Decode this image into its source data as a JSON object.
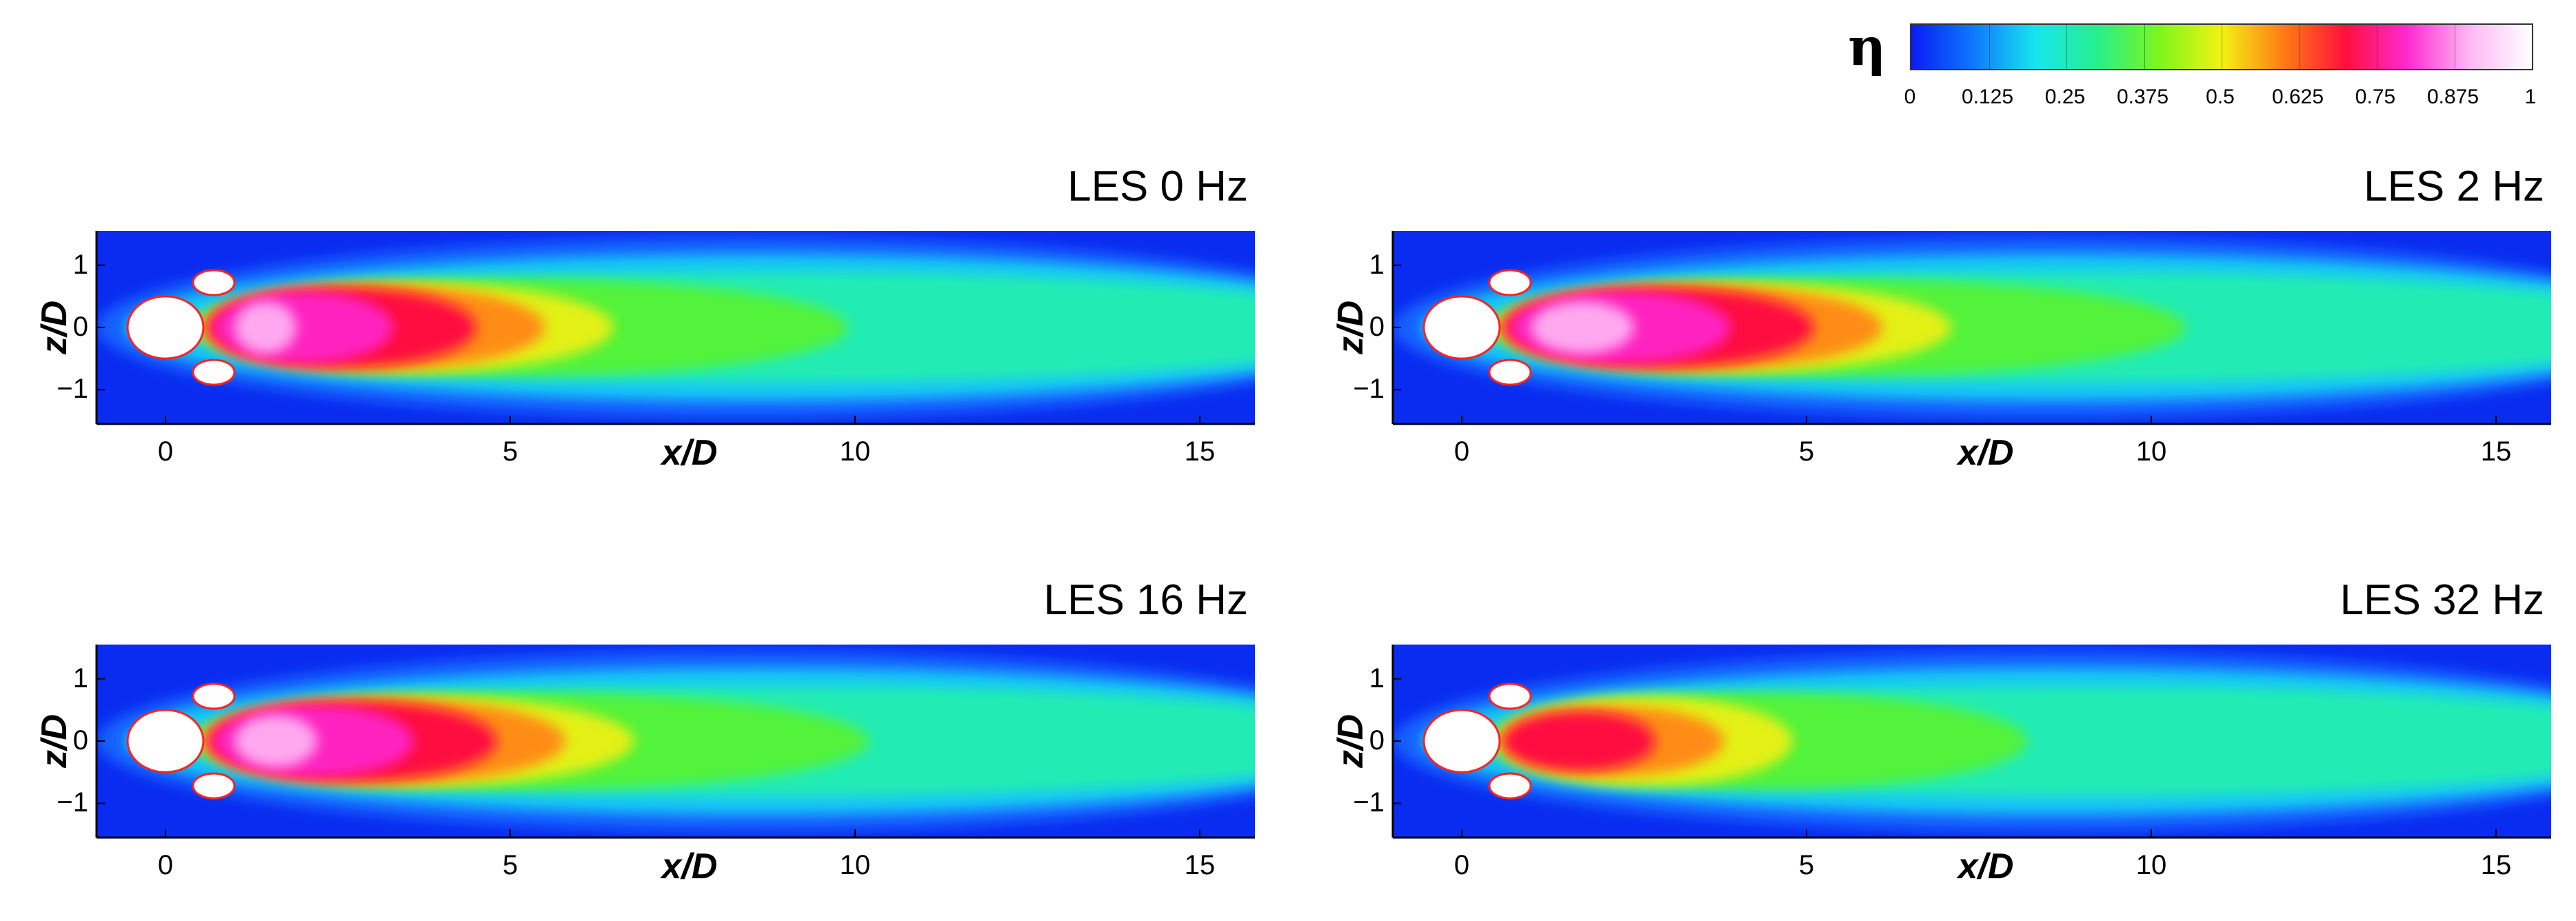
{
  "chart_data": {
    "type": "heatmap",
    "colorbar": {
      "variable": "η",
      "ticks": [
        "0",
        "0.125",
        "0.25",
        "0.375",
        "0.5",
        "0.625",
        "0.75",
        "0.875",
        "1"
      ],
      "range": [
        0,
        1
      ],
      "colors": [
        "#0a1cf5",
        "#0f78ff",
        "#16e6ee",
        "#25f08a",
        "#7cf61c",
        "#f2f214",
        "#ff7c14",
        "#ff0f3c",
        "#ff2ad2",
        "#ffb8f4",
        "#ffffff"
      ]
    },
    "panels": [
      {
        "title": "LES 0 Hz",
        "xlabel": "x/D",
        "ylabel": "z/D",
        "xticks": [
          "0",
          "5",
          "10",
          "15"
        ],
        "yticks": [
          "1",
          "0",
          "−1"
        ],
        "xlim": [
          -1,
          15.8
        ],
        "ylim": [
          -1.55,
          1.55
        ],
        "peak_extent_xD": 3.9,
        "wake_extent_xD": 15.8,
        "peak_level": 0.92
      },
      {
        "title": "LES 2 Hz",
        "xlabel": "x/D",
        "ylabel": "z/D",
        "xticks": [
          "0",
          "5",
          "10",
          "15"
        ],
        "yticks": [
          "1",
          "0",
          "−1"
        ],
        "xlim": [
          -1,
          15.8
        ],
        "ylim": [
          -1.55,
          1.55
        ],
        "peak_extent_xD": 4.5,
        "wake_extent_xD": 15.8,
        "peak_level": 0.95
      },
      {
        "title": "LES 16 Hz",
        "xlabel": "x/D",
        "ylabel": "z/D",
        "xticks": [
          "0",
          "5",
          "10",
          "15"
        ],
        "yticks": [
          "1",
          "0",
          "−1"
        ],
        "xlim": [
          -1,
          15.8
        ],
        "ylim": [
          -1.55,
          1.55
        ],
        "peak_extent_xD": 4.2,
        "wake_extent_xD": 15.8,
        "peak_level": 0.92
      },
      {
        "title": "LES 32 Hz",
        "xlabel": "x/D",
        "ylabel": "z/D",
        "xticks": [
          "0",
          "5",
          "10",
          "15"
        ],
        "yticks": [
          "1",
          "0",
          "−1"
        ],
        "xlim": [
          -1,
          15.8
        ],
        "ylim": [
          -1.55,
          1.55
        ],
        "peak_extent_xD": 2.2,
        "wake_extent_xD": 15.8,
        "peak_level": 0.7
      }
    ]
  }
}
